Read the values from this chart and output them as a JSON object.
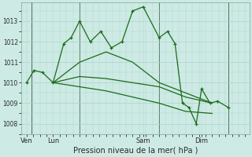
{
  "bg_color": "#ceeae4",
  "grid_color": "#aad4cc",
  "line_color": "#1a6b1a",
  "title": "Pression niveau de la mer( hPa )",
  "yticks": [
    1008,
    1009,
    1010,
    1011,
    1012,
    1013
  ],
  "ylim": [
    1007.5,
    1013.9
  ],
  "xtick_labels": [
    "Ven",
    "Lun",
    "Sam",
    "Dim"
  ],
  "xtick_positions": [
    0.5,
    3.0,
    11.5,
    17.0
  ],
  "vline_positions": [
    1.0,
    5.5,
    13.0,
    19.5
  ],
  "xlim": [
    0.0,
    21.5
  ],
  "series1": {
    "x": [
      0.5,
      1.2,
      2.0,
      3.0,
      4.0,
      4.7,
      5.5,
      6.5,
      7.5,
      8.5,
      9.5,
      10.5,
      11.5,
      13.0,
      13.8,
      14.5,
      15.2,
      15.8,
      16.5,
      17.0,
      17.8,
      18.5,
      19.5
    ],
    "y": [
      1010.0,
      1010.6,
      1010.5,
      1010.0,
      1011.9,
      1012.2,
      1013.0,
      1012.0,
      1012.5,
      1011.7,
      1012.0,
      1013.5,
      1013.7,
      1012.2,
      1012.5,
      1011.9,
      1009.0,
      1008.8,
      1008.0,
      1009.7,
      1009.0,
      1009.1,
      1008.8
    ]
  },
  "series2": {
    "x": [
      3.0,
      5.5,
      8.0,
      10.5,
      13.0,
      15.5,
      18.0
    ],
    "y": [
      1010.0,
      1011.0,
      1011.5,
      1011.0,
      1010.0,
      1009.5,
      1009.0
    ]
  },
  "series3": {
    "x": [
      3.0,
      5.5,
      8.0,
      10.5,
      13.0,
      15.5,
      18.0
    ],
    "y": [
      1010.0,
      1010.3,
      1010.2,
      1010.0,
      1009.8,
      1009.3,
      1009.0
    ]
  },
  "series4": {
    "x": [
      3.0,
      5.5,
      8.0,
      10.5,
      13.0,
      15.5,
      18.0
    ],
    "y": [
      1010.0,
      1009.8,
      1009.6,
      1009.3,
      1009.0,
      1008.6,
      1008.5
    ]
  }
}
